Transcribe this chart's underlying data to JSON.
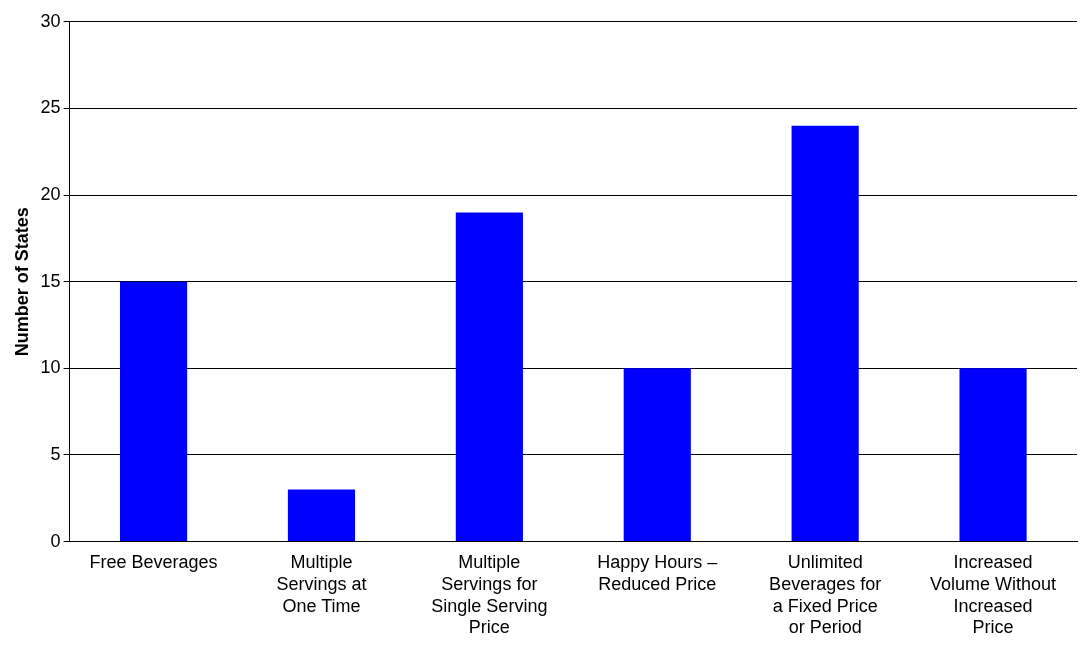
{
  "chart_data": {
    "type": "bar",
    "ylabel": "Number of States",
    "categories": [
      "Free Beverages",
      "Multiple Servings at One Time",
      "Multiple Servings for Single Serving Price",
      "Happy Hours – Reduced Price",
      "Unlimited Beverages for a Fixed Price or Period",
      "Increased Volume Without Increased Price"
    ],
    "values": [
      15,
      3,
      19,
      10,
      24,
      10
    ],
    "color": "#0000ff",
    "ylim": [
      0,
      30
    ],
    "yticks": [
      0,
      5,
      10,
      15,
      20,
      25,
      30
    ],
    "grid": "y",
    "legend": false
  }
}
